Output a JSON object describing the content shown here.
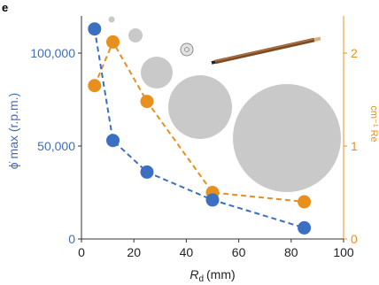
{
  "panel_label": "e",
  "colors": {
    "left_series": "#3a6fc1",
    "right_series": "#e8901e",
    "axis": "#333333",
    "disc_fill": "#c9c9c9"
  },
  "chart_data": {
    "type": "line",
    "xlabel_main": "R",
    "xlabel_sub": "d",
    "xlabel_unit": "(mm)",
    "ylabel_left": "ϕ̇ max (r.p.m.)",
    "ylabel_right": "cm⁻¹ Re",
    "xlim": [
      0,
      100
    ],
    "ylim_left": [
      0,
      120000
    ],
    "ylim_right": [
      0,
      2.4
    ],
    "x_ticks": [
      "0",
      "20",
      "40",
      "60",
      "80",
      "100"
    ],
    "y_left_ticks": [
      "0",
      "50,000",
      "100,000"
    ],
    "y_right_ticks": [
      "0",
      "1",
      "2"
    ],
    "series": [
      {
        "axis": "left",
        "x": [
          5,
          12,
          25,
          50,
          85
        ],
        "values": [
          113000,
          53000,
          36000,
          21000,
          6000
        ]
      },
      {
        "axis": "right",
        "x": [
          5,
          12,
          25,
          50,
          85
        ],
        "values": [
          1.65,
          2.12,
          1.48,
          0.5,
          0.4
        ]
      }
    ],
    "grid": false,
    "legend": "none"
  },
  "illustration": {
    "icons": [
      "pencil-icon"
    ]
  }
}
